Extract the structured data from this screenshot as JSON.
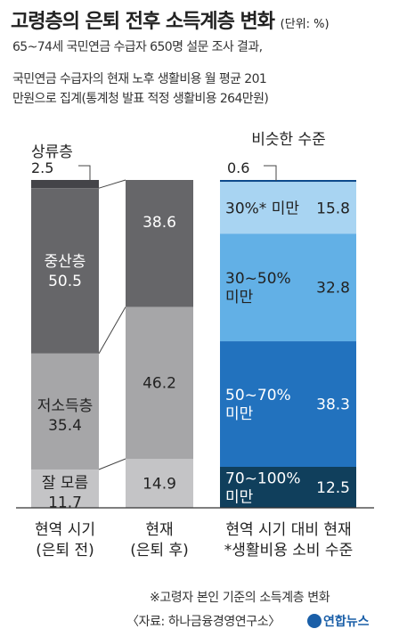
{
  "header": {
    "title": "고령층의 은퇴 전후 소득계층 변화",
    "unit": "(단위: %)",
    "subtitle_lines": [
      "65~74세 국민연금 수급자 650명 설문 조사 결과,",
      "국민연금 수급자의 현재 노후 생활비용 월 평균 201",
      "만원으로 집계(통계청 발표 적정 생활비용 264만원)"
    ]
  },
  "chart_data": [
    {
      "type": "bar",
      "stacked": true,
      "ylabel": "",
      "categories": [
        "현역 시기 (은퇴 전)",
        "현재 (은퇴 후)"
      ],
      "category_lines": [
        [
          "현역 시기",
          "(은퇴 전)"
        ],
        [
          "현재",
          "(은퇴 후)"
        ]
      ],
      "series": [
        {
          "name": "상류층",
          "values": [
            2.5,
            0
          ],
          "color": "#444448"
        },
        {
          "name": "중산층",
          "values": [
            50.5,
            38.6
          ],
          "color": "#666669"
        },
        {
          "name": "저소득층",
          "values": [
            35.4,
            46.2
          ],
          "color": "#a6a6a8"
        },
        {
          "name": "잘 모름",
          "values": [
            11.7,
            14.9
          ],
          "color": "#c4c4c6"
        }
      ],
      "series_label_lines": [
        [
          "상류층"
        ],
        [
          "중산층"
        ],
        [
          "저소득층"
        ],
        [
          "잘 모름"
        ]
      ],
      "value_labels": [
        [
          "2.5",
          "38.6",
          "46.2",
          "14.9"
        ],
        [
          "50.5",
          "35.4",
          "11.7"
        ]
      ]
    },
    {
      "type": "bar",
      "stacked": true,
      "title": "비슷한 수준",
      "categories": [
        "현역 시기 대비 현재 *생활비용 소비 수준"
      ],
      "category_lines": [
        [
          "현역 시기 대비 현재",
          "*생활비용 소비 수준"
        ]
      ],
      "series": [
        {
          "name": "비슷한 수준",
          "values": [
            0.6
          ],
          "color": "#0d4a8c"
        },
        {
          "name": "30%* 미만",
          "values": [
            15.8
          ],
          "color": "#a8d4f2"
        },
        {
          "name": "30~50% 미만",
          "values": [
            32.8
          ],
          "color": "#62b0e6"
        },
        {
          "name": "50~70% 미만",
          "values": [
            38.3
          ],
          "color": "#2272be"
        },
        {
          "name": "70~100% 미만",
          "values": [
            12.5
          ],
          "color": "#103f5c"
        }
      ],
      "series_label_lines": [
        [
          "30%* 미만"
        ],
        [
          "30~50%",
          "미만"
        ],
        [
          "50~70%",
          "미만"
        ],
        [
          "70~100%",
          "미만"
        ]
      ]
    }
  ],
  "footer": {
    "note": "※고령자 본인 기준의 소득계층 변화",
    "source": "〈자료: 하나금융경영연구소〉",
    "logo_text": "연합뉴스"
  }
}
